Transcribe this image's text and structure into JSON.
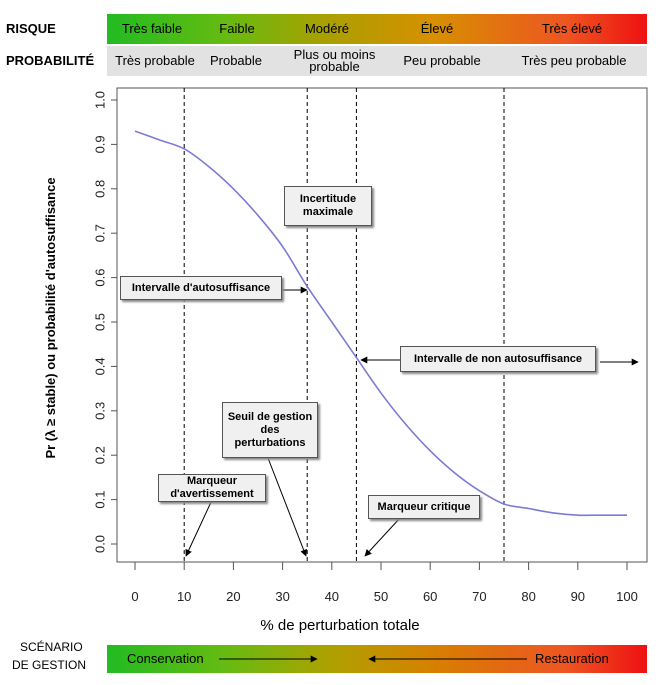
{
  "header": {
    "risk_label": "RISQUE",
    "probability_label": "PROBABILITÉ",
    "risk_levels": [
      "Très faible",
      "Faible",
      "Modéré",
      "Élevé",
      "Très élevé"
    ],
    "probability_levels": [
      "Très probable",
      "Probable",
      "Plus ou moins probable",
      "Peu probable",
      "Très peu probable"
    ]
  },
  "footer": {
    "scenario_label_line1": "SCÉNARIO",
    "scenario_label_line2": "DE GESTION",
    "conservation": "Conservation",
    "restauration": "Restauration"
  },
  "annotations": {
    "incertitude": "Incertitude maximale",
    "autosuffisance": "Intervalle d'autosuffisance",
    "non_autosuffisance": "Intervalle de non autosuffisance",
    "seuil": "Seuil de gestion des perturbations",
    "marqueur_avertissement": "Marqueur d'avertissement",
    "marqueur_critique": "Marqueur critique"
  },
  "chart_data": {
    "type": "line",
    "xlabel": "% de perturbation totale",
    "ylabel": "Pr (λ ≥ stable) ou probabilité d'autosuffisance",
    "xlim": [
      0,
      100
    ],
    "ylim": [
      0,
      1
    ],
    "xticks": [
      0,
      10,
      20,
      30,
      40,
      50,
      60,
      70,
      80,
      90,
      100
    ],
    "yticks": [
      0.0,
      0.1,
      0.2,
      0.3,
      0.4,
      0.5,
      0.6,
      0.7,
      0.8,
      0.9,
      1.0
    ],
    "ytick_labels": [
      "0.0",
      "0.1",
      "0.2",
      "0.3",
      "0.4",
      "0.5",
      "0.6",
      "0.7",
      "0.8",
      "0.9",
      "1.0"
    ],
    "line_color": "#7b7bd6",
    "x": [
      0,
      5,
      10,
      15,
      20,
      25,
      30,
      35,
      40,
      45,
      50,
      55,
      60,
      65,
      70,
      75,
      80,
      85,
      90,
      95,
      100
    ],
    "y": [
      0.93,
      0.91,
      0.89,
      0.85,
      0.8,
      0.74,
      0.67,
      0.58,
      0.5,
      0.42,
      0.34,
      0.27,
      0.21,
      0.16,
      0.12,
      0.09,
      0.08,
      0.07,
      0.065,
      0.065,
      0.065
    ],
    "vlines": [
      10,
      35,
      45,
      75
    ],
    "grid": false
  }
}
